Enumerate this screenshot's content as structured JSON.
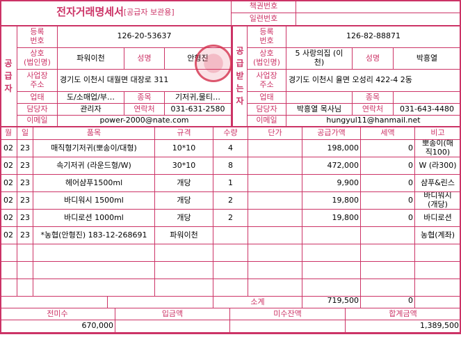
{
  "title": {
    "main": "전자거래명세서",
    "sub": "[공급자 보관용]"
  },
  "book": {
    "volume_label": "책권번호",
    "volume_value": "",
    "serial_label": "일련번호",
    "serial_value": ""
  },
  "supplier": {
    "side_label": "공\n급\n자",
    "reg_label": "등록\n번호",
    "reg": "126-20-53637",
    "name_label": "상호\n(법인명)",
    "name": "파워이천",
    "rep_label": "성명",
    "rep": "안형진",
    "addr_label": "사업장\n주소",
    "addr": "경기도 이천시 대월면 대장로 311",
    "biz_label": "업태",
    "biz": "도/소매업/부…",
    "item_label": "종목",
    "item": "기저귀,물티…",
    "contact_label": "담당자",
    "contact": "관리자",
    "phone_label": "연락처",
    "phone": "031-631-2580",
    "email_label": "이메일",
    "email": "power-2000@nate.com"
  },
  "receiver": {
    "side_label": "공\n급\n받\n는\n자",
    "reg_label": "등록\n번호",
    "reg": "126-82-88871",
    "name_label": "상호\n(법인명)",
    "name": "5 사랑의집 (이\n천)",
    "rep_label": "성명",
    "rep": "박흥열",
    "addr_label": "사업장\n주소",
    "addr": "경기도 이천시 율면 오성리 422-4 2동",
    "biz_label": "업태",
    "biz": "",
    "item_label": "종목",
    "item": "",
    "contact_label": "담당자",
    "contact": "박흥열 목사님",
    "phone_label": "연락처",
    "phone": "031-643-4480",
    "email_label": "이메일",
    "email": "hungyul11@hanmail.net"
  },
  "table": {
    "headers": [
      "월",
      "일",
      "품목",
      "규격",
      "수량",
      "단가",
      "공급가액",
      "세액",
      "비고"
    ],
    "rows": [
      [
        "02",
        "23",
        "매직형기저귀(뽀송이/대형)",
        "10*10",
        "4",
        "",
        "198,000",
        "0",
        "뽀송이(매\n직100)"
      ],
      [
        "02",
        "23",
        "속기저귀 (라운드형/W)",
        "30*10",
        "8",
        "",
        "472,000",
        "0",
        "W (라300)"
      ],
      [
        "02",
        "23",
        "헤어샴푸1500ml",
        "개당",
        "1",
        "",
        "9,900",
        "0",
        "샴푸&린스"
      ],
      [
        "02",
        "23",
        "바디워시 1500ml",
        "개당",
        "2",
        "",
        "19,800",
        "0",
        "바디워시\n(개당)"
      ],
      [
        "02",
        "23",
        "바디로션 1000ml",
        "개당",
        "2",
        "",
        "19,800",
        "0",
        "바디로션"
      ],
      [
        "02",
        "23",
        "*농협(안형진) 183-12-268691",
        "파워이천",
        "",
        "",
        "",
        "",
        "농협(계좌)"
      ],
      [
        "",
        "",
        "",
        "",
        "",
        "",
        "",
        "",
        ""
      ],
      [
        "",
        "",
        "",
        "",
        "",
        "",
        "",
        "",
        ""
      ],
      [
        "",
        "",
        "",
        "",
        "",
        "",
        "",
        "",
        ""
      ]
    ],
    "subtotal_label": "소계",
    "subtotal_supply": "719,500",
    "subtotal_tax": "0"
  },
  "totals": {
    "prev_label": "전미수",
    "prev": "670,000",
    "paid_label": "입금액",
    "paid": "",
    "balance_label": "미수잔액",
    "balance": "",
    "total_label": "합계금액",
    "total": "1,389,500"
  },
  "colors": {
    "accent": "#cc3366"
  }
}
